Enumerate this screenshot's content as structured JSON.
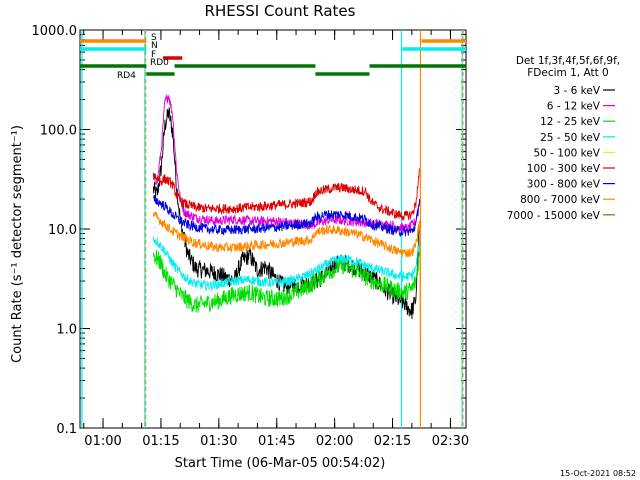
{
  "chart_data": {
    "type": "line",
    "title": "RHESSI Count Rates",
    "xlabel": "Start Time (06-Mar-05 00:54:02)",
    "ylabel": "Count Rate (s⁻¹ detector segment⁻¹)",
    "yscale": "log",
    "ylim": [
      0.1,
      1000.0
    ],
    "xlim_minutes": [
      0,
      100
    ],
    "x_tick_labels": [
      "01:00",
      "01:15",
      "01:30",
      "01:45",
      "02:00",
      "02:15",
      "02:30"
    ],
    "x_tick_minutes": [
      5.97,
      20.97,
      35.97,
      50.97,
      65.97,
      80.97,
      95.97
    ],
    "y_tick_labels": [
      "0.1",
      "1.0",
      "10.0",
      "100.0",
      "1000.0"
    ],
    "y_tick_values": [
      0.1,
      1.0,
      10.0,
      100.0,
      1000.0
    ],
    "legend": {
      "placement": "right",
      "header": [
        "Det 1f,3f,4f,5f,6f,9f,",
        "FDecim 1, Att 0"
      ],
      "entries": [
        {
          "label": "3 - 6 keV",
          "color": "#000000"
        },
        {
          "label": "6 - 12 keV",
          "color": "#dd00dd"
        },
        {
          "label": "12 - 25 keV",
          "color": "#00dd00"
        },
        {
          "label": "25 - 50 keV",
          "color": "#00eeee"
        },
        {
          "label": "50 - 100 keV",
          "color": "#eeee00"
        },
        {
          "label": "100 - 300 keV",
          "color": "#dd0000"
        },
        {
          "label": "300 - 800 keV",
          "color": "#0000dd"
        },
        {
          "label": "800 - 7000 keV",
          "color": "#ff8800"
        },
        {
          "label": "7000 - 15000 keV",
          "color": "#996600"
        }
      ]
    },
    "flag_bars": [
      {
        "label": "S",
        "color": "#ff8800",
        "segments": [
          [
            0,
            17.2
          ],
          [
            88.5,
            100
          ]
        ]
      },
      {
        "label": "N",
        "color": "#00eeee",
        "segments": [
          [
            0,
            17.2
          ],
          [
            83.5,
            100
          ]
        ]
      },
      {
        "label": "F",
        "color": "#dd0000",
        "segments": [
          [
            21.5,
            26.5
          ]
        ]
      },
      {
        "label": "RD0",
        "color": "#007700",
        "segments": [
          [
            0,
            17.2
          ],
          [
            24.5,
            61
          ],
          [
            75,
            100
          ]
        ]
      },
      {
        "label": "RD4",
        "color": "#007700",
        "segments": [
          [
            17.2,
            24.5
          ],
          [
            61,
            75
          ]
        ]
      }
    ],
    "vertical_markers": [
      {
        "minute": 0.5,
        "color": "#00eeee"
      },
      {
        "minute": 16.8,
        "color": "#00eeee"
      },
      {
        "minute": 17.0,
        "color": "#ff8800",
        "dashed": true
      },
      {
        "minute": 83.3,
        "color": "#00eeee"
      },
      {
        "minute": 88.2,
        "color": "#ff8800"
      },
      {
        "minute": 99.0,
        "color": "#00eeee"
      },
      {
        "minute": 99.2,
        "color": "#ff8800",
        "dashed": true
      }
    ],
    "series": [
      {
        "name": "3 - 6 keV",
        "color": "#000000",
        "x": [
          19,
          20,
          21,
          22,
          23,
          24,
          25,
          26,
          27,
          28,
          30,
          33,
          36,
          38,
          40,
          42,
          44,
          46,
          48,
          50,
          52,
          54,
          56,
          58,
          60,
          62,
          64,
          66,
          68,
          70,
          72,
          74,
          76,
          78,
          80,
          82,
          84,
          85,
          86,
          87,
          88
        ],
        "y": [
          25,
          22,
          40,
          110,
          150,
          95,
          28,
          12,
          8,
          5.5,
          4,
          3.8,
          3.5,
          3.2,
          3.1,
          4.8,
          5.5,
          3.8,
          4.2,
          3.4,
          2.8,
          2.6,
          2.7,
          2.8,
          2.9,
          3.1,
          3.6,
          4.4,
          4.6,
          4.4,
          4.0,
          3.6,
          3.2,
          2.7,
          2.3,
          2.0,
          1.8,
          1.6,
          1.5,
          2.0,
          12
        ]
      },
      {
        "name": "6 - 12 keV",
        "color": "#dd00dd",
        "x": [
          19,
          20,
          21,
          22,
          23,
          24,
          25,
          26,
          27,
          28,
          30,
          35,
          40,
          45,
          50,
          55,
          60,
          65,
          70,
          75,
          80,
          85,
          87,
          88
        ],
        "y": [
          33,
          30,
          60,
          190,
          220,
          140,
          40,
          20,
          15,
          14,
          13,
          12,
          12.5,
          12,
          12,
          11.5,
          11,
          12.5,
          12,
          11.5,
          11,
          10,
          12,
          20
        ]
      },
      {
        "name": "12 - 25 keV",
        "color": "#00dd00",
        "x": [
          19,
          20,
          21,
          22,
          24,
          26,
          28,
          30,
          33,
          36,
          40,
          44,
          48,
          52,
          56,
          60,
          62,
          64,
          66,
          68,
          70,
          72,
          74,
          76,
          78,
          80,
          82,
          84,
          86,
          87,
          88
        ],
        "y": [
          5.5,
          5,
          4.5,
          3.5,
          2.8,
          2.2,
          1.9,
          1.7,
          1.8,
          1.9,
          2.2,
          2.3,
          2.0,
          2.0,
          2.3,
          2.8,
          3.2,
          3.6,
          4.0,
          4.3,
          4.0,
          3.7,
          3.3,
          3.0,
          2.8,
          2.6,
          2.4,
          2.3,
          2.5,
          3.0,
          6
        ]
      },
      {
        "name": "25 - 50 keV",
        "color": "#00eeee",
        "x": [
          19,
          20,
          22,
          24,
          26,
          28,
          30,
          33,
          36,
          40,
          44,
          48,
          52,
          56,
          60,
          62,
          64,
          66,
          68,
          70,
          72,
          74,
          76,
          78,
          80,
          82,
          84,
          86,
          87,
          88
        ],
        "y": [
          8,
          7.5,
          6,
          4.5,
          3.6,
          3.1,
          2.8,
          2.7,
          2.8,
          3.0,
          3.1,
          2.9,
          2.9,
          3.1,
          3.6,
          4.0,
          4.4,
          4.8,
          5.0,
          4.9,
          4.6,
          4.3,
          4.0,
          3.8,
          3.6,
          3.4,
          3.3,
          3.4,
          4.0,
          8
        ]
      },
      {
        "name": "100 - 300 keV",
        "color": "#dd0000",
        "x": [
          19,
          20,
          21,
          22,
          23,
          24,
          25,
          26,
          27,
          28,
          30,
          33,
          36,
          40,
          44,
          48,
          52,
          56,
          60,
          61,
          62,
          64,
          66,
          68,
          70,
          72,
          74,
          75,
          76,
          78,
          80,
          82,
          84,
          86,
          87,
          88
        ],
        "y": [
          35,
          33,
          30,
          32,
          30,
          28,
          22,
          19,
          18,
          17.5,
          16.5,
          16,
          16,
          16,
          16.5,
          17,
          17.5,
          18,
          19,
          23,
          24,
          25,
          26,
          26,
          25,
          24.5,
          24,
          20,
          18,
          16,
          15,
          14,
          13.5,
          14,
          18,
          40
        ]
      },
      {
        "name": "300 - 800 keV",
        "color": "#0000dd",
        "x": [
          19,
          20,
          22,
          24,
          26,
          28,
          30,
          33,
          36,
          40,
          44,
          48,
          52,
          56,
          60,
          61,
          62,
          64,
          66,
          68,
          70,
          72,
          74,
          75,
          76,
          78,
          80,
          82,
          84,
          86,
          87,
          88
        ],
        "y": [
          20,
          19,
          17,
          14,
          12,
          11,
          10.5,
          10,
          9.8,
          9.8,
          10,
          10.2,
          10.5,
          11,
          11.5,
          13,
          13.5,
          14,
          14,
          14,
          13.5,
          13,
          12.5,
          11.5,
          11,
          10.5,
          10,
          9.6,
          9.4,
          9.5,
          11,
          20
        ]
      },
      {
        "name": "800 - 7000 keV",
        "color": "#ff8800",
        "x": [
          19,
          20,
          22,
          24,
          26,
          28,
          30,
          33,
          36,
          40,
          44,
          48,
          52,
          56,
          60,
          61,
          62,
          64,
          66,
          68,
          70,
          72,
          74,
          76,
          78,
          80,
          82,
          84,
          86,
          87,
          88,
          88.2
        ],
        "y": [
          14,
          13,
          11,
          9.5,
          8.5,
          7.8,
          7.2,
          6.8,
          6.5,
          6.5,
          6.8,
          7.0,
          7.2,
          7.5,
          7.8,
          9.2,
          9.5,
          9.8,
          9.8,
          9.5,
          9.2,
          8.8,
          8.3,
          7.6,
          7.0,
          6.5,
          6.0,
          5.8,
          5.8,
          7,
          12,
          0.5
        ]
      }
    ]
  },
  "footer_timestamp": "15-Oct-2021 08:52"
}
